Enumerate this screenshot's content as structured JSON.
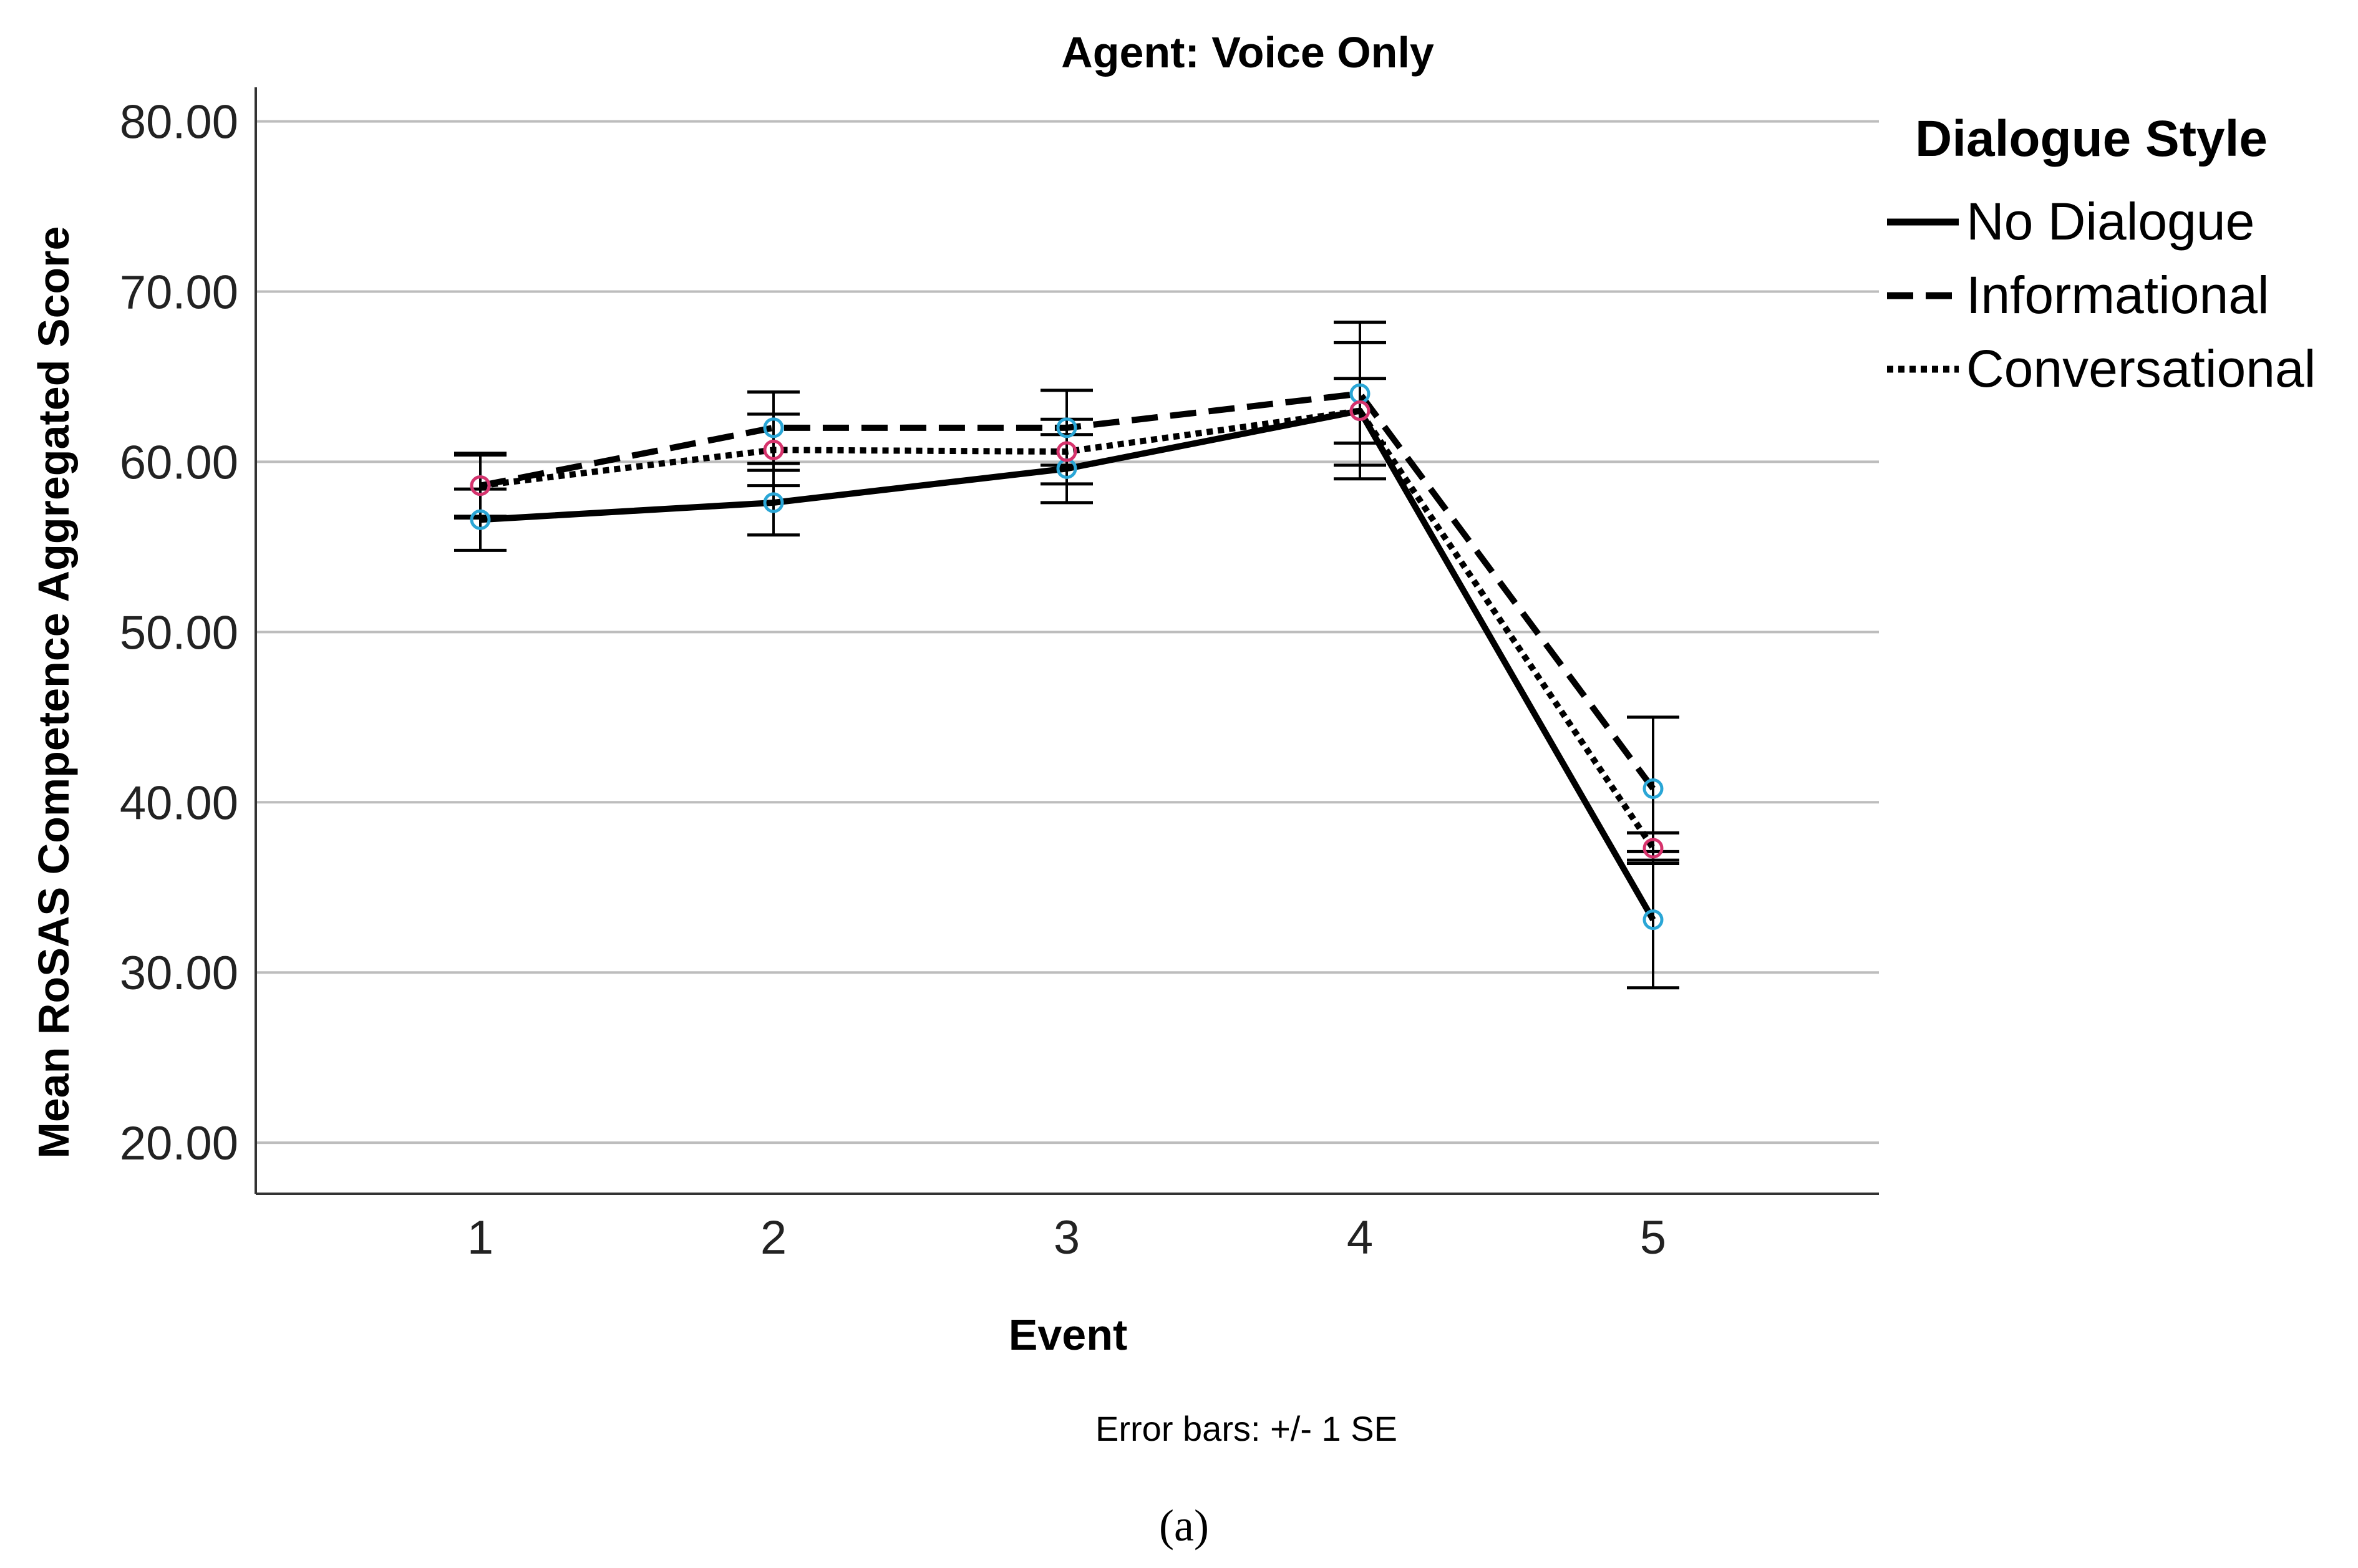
{
  "chart_data": {
    "type": "line",
    "title": "Agent: Voice Only",
    "xlabel": "Event",
    "ylabel": "Mean RoSAS Competence Aggregated Score",
    "categories": [
      "1",
      "2",
      "3",
      "4",
      "5"
    ],
    "y_ticks": [
      "20.00",
      "30.00",
      "40.00",
      "50.00",
      "60.00",
      "70.00",
      "80.00"
    ],
    "ylim": [
      17,
      82
    ],
    "grid": true,
    "legend_title": "Dialogue Style",
    "legend_position": "top-right",
    "error_bar_note": "Error bars: +/- 1 SE",
    "caption": "(a)",
    "series": [
      {
        "name": "No Dialogue",
        "style": "solid",
        "marker_color": "#2aa6d6",
        "values": [
          56.6,
          57.6,
          59.6,
          63.0,
          33.1
        ],
        "se": [
          1.8,
          1.9,
          2.0,
          1.9,
          4.0
        ]
      },
      {
        "name": "Informational",
        "style": "dashed",
        "marker_color": "#2aa6d6",
        "values": [
          58.6,
          62.0,
          62.0,
          64.0,
          40.8
        ],
        "se": [
          1.9,
          2.1,
          2.2,
          4.2,
          4.2
        ]
      },
      {
        "name": "Conversational",
        "style": "dotted",
        "marker_color": "#d6336c",
        "values": [
          58.6,
          60.7,
          60.6,
          63.0,
          37.3
        ],
        "se": [
          1.8,
          2.1,
          1.9,
          4.0,
          0.9
        ]
      }
    ],
    "colors": {
      "line": "#000000",
      "grid": "#bdbdbd",
      "axis": "#333333"
    }
  }
}
